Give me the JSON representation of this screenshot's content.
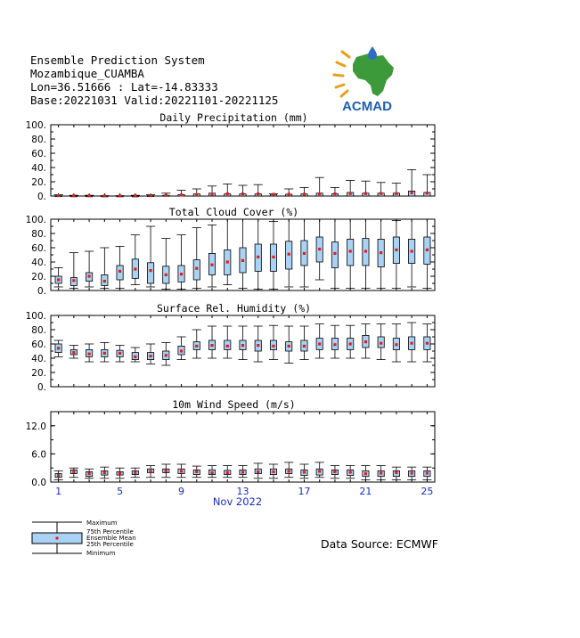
{
  "header": {
    "line1": "Ensemble Prediction System",
    "line2": "Mozambique_CUAMBA",
    "line3": "Lon=36.51666 : Lat=-14.83333",
    "line4": "Base:20221031 Valid:20221101-20221125"
  },
  "logo": {
    "text": "ACMAD",
    "colors": {
      "africa": "#3c9a3a",
      "drop": "#2e6fc4",
      "sun": "#e8a020",
      "text": "#1f5fa8"
    }
  },
  "source": "Data Source: ECMWF",
  "legend": {
    "maximum": "Maximum",
    "p75": "75th Percentile",
    "mean": "Ensemble Mean",
    "p25": "25th Percentile",
    "minimum": "Minimum"
  },
  "colors": {
    "box_fill": "#a9d2f5",
    "mean": "#e01e1e",
    "axis_label": "#1a2db8"
  },
  "x_axis": {
    "days": [
      1,
      2,
      3,
      4,
      5,
      6,
      7,
      8,
      9,
      10,
      11,
      12,
      13,
      14,
      15,
      16,
      17,
      18,
      19,
      20,
      21,
      22,
      23,
      24,
      25
    ],
    "tick_labels": [
      1,
      5,
      9,
      13,
      17,
      21,
      25
    ],
    "month_label": "Nov 2022"
  },
  "chart_data": [
    {
      "type": "box",
      "title": "Daily Precipitation (mm)",
      "ylim": [
        0,
        100
      ],
      "yticks": [
        0,
        20,
        40,
        60,
        80,
        100
      ],
      "ytick_labels": [
        "0.",
        "20.",
        "40.",
        "60.",
        "80.",
        "100."
      ],
      "min": [
        0,
        0,
        0,
        0,
        0,
        0,
        0,
        0,
        0,
        0,
        0,
        0,
        0,
        0,
        0,
        0,
        0,
        0,
        0,
        0,
        0,
        0,
        0,
        0,
        0
      ],
      "p25": [
        0,
        0,
        0,
        0,
        0,
        0,
        0,
        0,
        0,
        0,
        0,
        0,
        0,
        0,
        0,
        0,
        0,
        0,
        0,
        0,
        0,
        0,
        0,
        0,
        0
      ],
      "mean": [
        0.5,
        0.3,
        0.3,
        0.2,
        0.2,
        0.2,
        0.5,
        1,
        1.5,
        2,
        2.5,
        3,
        3,
        3,
        2.5,
        2.5,
        2.5,
        3,
        3,
        3.5,
        3.5,
        3.5,
        3.5,
        4.5,
        4
      ],
      "p75": [
        0.5,
        0.3,
        0.3,
        0.2,
        0.2,
        0.2,
        0.5,
        1,
        2,
        3,
        4,
        3,
        3,
        3,
        2.5,
        2.5,
        3,
        4,
        3,
        5,
        4,
        4,
        4,
        7,
        5
      ],
      "max": [
        2,
        1,
        1,
        0.5,
        0.5,
        1,
        2,
        4,
        8,
        10,
        14,
        17,
        15,
        16,
        3,
        10,
        12,
        26,
        12,
        22,
        21,
        19,
        18,
        37,
        30
      ]
    },
    {
      "type": "box",
      "title": "Total Cloud Cover (%)",
      "ylim": [
        0,
        100
      ],
      "yticks": [
        0,
        20,
        40,
        60,
        80,
        100
      ],
      "ytick_labels": [
        "0.",
        "20.",
        "40.",
        "60.",
        "80.",
        "100."
      ],
      "min": [
        5,
        3,
        5,
        3,
        3,
        8,
        5,
        2,
        2,
        3,
        5,
        8,
        3,
        2,
        2,
        5,
        5,
        15,
        3,
        3,
        3,
        3,
        3,
        5,
        3
      ],
      "p25": [
        10,
        7,
        13,
        7,
        15,
        17,
        10,
        10,
        12,
        15,
        22,
        22,
        25,
        27,
        27,
        30,
        35,
        40,
        32,
        35,
        35,
        33,
        38,
        38,
        37
      ],
      "mean": [
        15,
        14,
        20,
        13,
        27,
        30,
        28,
        22,
        23,
        31,
        36,
        40,
        42,
        47,
        47,
        51,
        52,
        58,
        52,
        55,
        55,
        53,
        57,
        55,
        57
      ],
      "p75": [
        20,
        18,
        25,
        22,
        35,
        44,
        39,
        34,
        35,
        43,
        52,
        57,
        60,
        65,
        65,
        69,
        70,
        75,
        68,
        72,
        73,
        72,
        75,
        72,
        75
      ],
      "max": [
        32,
        53,
        55,
        60,
        62,
        78,
        90,
        73,
        78,
        88,
        92,
        100,
        100,
        100,
        97,
        100,
        100,
        100,
        100,
        100,
        100,
        100,
        98,
        100,
        100
      ]
    },
    {
      "type": "box",
      "title": "Surface Rel. Humidity (%)",
      "ylim": [
        0,
        100
      ],
      "yticks": [
        0,
        20,
        40,
        60,
        80,
        100
      ],
      "ytick_labels": [
        "0.",
        "20.",
        "40.",
        "60.",
        "80.",
        "100."
      ],
      "min": [
        42,
        40,
        35,
        35,
        35,
        35,
        32,
        30,
        38,
        40,
        40,
        40,
        38,
        35,
        38,
        33,
        38,
        40,
        40,
        40,
        40,
        38,
        35,
        35,
        35
      ],
      "p25": [
        48,
        45,
        42,
        42,
        42,
        38,
        38,
        38,
        45,
        52,
        52,
        52,
        52,
        50,
        52,
        50,
        50,
        52,
        52,
        52,
        55,
        55,
        52,
        52,
        52
      ],
      "mean": [
        54,
        48,
        46,
        47,
        47,
        42,
        43,
        44,
        50,
        57,
        58,
        57,
        58,
        58,
        57,
        57,
        57,
        60,
        59,
        60,
        63,
        61,
        59,
        61,
        61
      ],
      "p75": [
        60,
        52,
        52,
        52,
        51,
        48,
        48,
        50,
        57,
        63,
        65,
        65,
        65,
        65,
        65,
        63,
        65,
        68,
        68,
        68,
        72,
        70,
        68,
        70,
        70
      ],
      "max": [
        65,
        58,
        60,
        62,
        58,
        55,
        60,
        62,
        70,
        80,
        85,
        85,
        85,
        85,
        86,
        85,
        85,
        88,
        86,
        86,
        88,
        88,
        88,
        90,
        88
      ]
    },
    {
      "type": "box",
      "title": "10m Wind Speed (m/s)",
      "ylim": [
        0,
        15
      ],
      "yticks": [
        0,
        6,
        12
      ],
      "ytick_labels": [
        "0.0",
        "6.0",
        "12.0"
      ],
      "min": [
        0.5,
        1,
        0.8,
        0.8,
        0.8,
        1,
        1,
        1,
        1,
        1,
        1,
        1,
        1,
        0.8,
        0.8,
        1,
        0.8,
        1,
        0.8,
        0.8,
        0.5,
        0.5,
        0.5,
        0.5,
        0.5
      ],
      "p25": [
        1,
        1.8,
        1.2,
        1.5,
        1.5,
        1.6,
        2,
        2,
        1.8,
        1.6,
        1.6,
        1.6,
        1.6,
        1.8,
        1.6,
        1.8,
        1.4,
        1.5,
        1.6,
        1.4,
        1.2,
        1.2,
        1.2,
        1.2,
        1.2
      ],
      "mean": [
        1.4,
        2.2,
        1.8,
        2,
        1.8,
        2,
        2.3,
        2.4,
        2.3,
        2.2,
        2,
        2,
        2.1,
        2.2,
        2.2,
        2.3,
        2.1,
        2.3,
        2.2,
        2.1,
        1.8,
        1.9,
        2,
        1.9,
        1.9
      ],
      "p75": [
        1.8,
        2.6,
        2.2,
        2.4,
        2.2,
        2.4,
        2.8,
        2.8,
        2.8,
        2.6,
        2.6,
        2.5,
        2.6,
        2.8,
        2.8,
        2.8,
        2.6,
        2.8,
        2.6,
        2.6,
        2.4,
        2.4,
        2.4,
        2.4,
        2.4
      ],
      "max": [
        2.4,
        3,
        2.8,
        3.2,
        3,
        3,
        3.5,
        3.8,
        3.8,
        3.4,
        3.5,
        3.5,
        3.5,
        4,
        3.8,
        4.2,
        3.8,
        4.2,
        3.5,
        3.5,
        3.5,
        3.5,
        3.2,
        3.2,
        3.2
      ]
    }
  ]
}
